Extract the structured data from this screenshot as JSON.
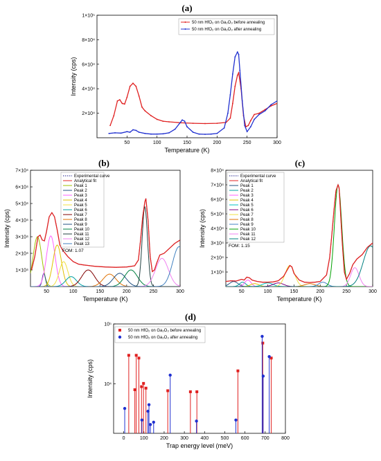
{
  "figure": {
    "panels": [
      {
        "key": "a",
        "label": "(a)"
      },
      {
        "key": "b",
        "label": "(b)"
      },
      {
        "key": "c",
        "label": "(c)"
      },
      {
        "key": "d",
        "label": "(d)"
      }
    ]
  },
  "chart_data": [
    {
      "panel": "(a)",
      "type": "line",
      "xlabel": "Temperature (K)",
      "ylabel": "Intensity (cps)",
      "xlim": [
        0,
        300
      ],
      "ylim": [
        0,
        100000
      ],
      "xticks": [
        50,
        100,
        150,
        200,
        250,
        300
      ],
      "yticks": [
        20000,
        40000,
        60000,
        80000,
        100000
      ],
      "ytick_labels": [
        "2×10⁴",
        "4×10⁴",
        "6×10⁴",
        "8×10⁴",
        "1×10⁵"
      ],
      "legend_position": "top-right",
      "series": [
        {
          "name": "50 nm HfO₂ on Ga₂O₃ before annealing",
          "color": "#e02020",
          "x": [
            22,
            28,
            34,
            38,
            42,
            46,
            50,
            55,
            60,
            65,
            70,
            75,
            80,
            90,
            100,
            110,
            120,
            140,
            160,
            180,
            200,
            215,
            222,
            226,
            230,
            234,
            236,
            240,
            244,
            248,
            252,
            256,
            262,
            270,
            280,
            290,
            300
          ],
          "y": [
            10000,
            18000,
            30000,
            31000,
            28000,
            27500,
            33000,
            42000,
            44500,
            42000,
            34000,
            25000,
            22000,
            18000,
            15000,
            13500,
            13000,
            12200,
            11800,
            11600,
            11800,
            12500,
            16000,
            28000,
            42000,
            51000,
            53000,
            40000,
            18000,
            9000,
            10000,
            14000,
            19000,
            20000,
            23000,
            26000,
            28000
          ]
        },
        {
          "name": "50 nm HfO₂ on Ga₂O₃ after annealing",
          "color": "#2030d0",
          "x": [
            20,
            30,
            40,
            50,
            55,
            60,
            65,
            70,
            80,
            90,
            100,
            110,
            120,
            130,
            138,
            142,
            146,
            150,
            160,
            170,
            180,
            190,
            200,
            212,
            218,
            222,
            226,
            230,
            234,
            236,
            238,
            242,
            246,
            250,
            256,
            262,
            270,
            280,
            290,
            300
          ],
          "y": [
            3500,
            4000,
            3800,
            5000,
            4500,
            6500,
            6000,
            4500,
            3500,
            3000,
            3000,
            3200,
            4000,
            7000,
            12000,
            14500,
            13500,
            9000,
            4500,
            3000,
            2800,
            3000,
            3500,
            8000,
            20000,
            35000,
            52000,
            66000,
            70000,
            68000,
            55000,
            30000,
            10000,
            5000,
            9000,
            15000,
            19000,
            22000,
            27000,
            30000
          ]
        }
      ]
    },
    {
      "panel": "(b)",
      "type": "line",
      "xlabel": "Temperature (K)",
      "ylabel": "Intensity (cps)",
      "xlim": [
        20,
        300
      ],
      "ylim": [
        0,
        70000
      ],
      "xticks": [
        50,
        100,
        150,
        200,
        250,
        300
      ],
      "yticks": [
        10000,
        20000,
        30000,
        40000,
        50000,
        60000,
        70000
      ],
      "ytick_labels": [
        "1×10⁴",
        "2×10⁴",
        "3×10⁴",
        "4×10⁴",
        "5×10⁴",
        "6×10⁴",
        "7×10⁴"
      ],
      "legend_position": "top-left",
      "fom": "FOM: 1.07",
      "series": [
        {
          "name": "Experimental curve",
          "color": "#1a1a8a",
          "style": "dotted",
          "x": [
            22,
            28,
            34,
            38,
            42,
            46,
            50,
            55,
            60,
            65,
            70,
            75,
            80,
            90,
            100,
            110,
            120,
            140,
            160,
            180,
            200,
            215,
            222,
            226,
            230,
            234,
            236,
            240,
            244,
            248,
            252,
            256,
            262,
            270,
            280,
            290,
            300
          ],
          "y": [
            10000,
            18000,
            30000,
            31000,
            28000,
            27500,
            33000,
            42000,
            44500,
            42000,
            34000,
            25000,
            22000,
            18000,
            15000,
            13500,
            13000,
            12200,
            11800,
            11600,
            11800,
            12500,
            16000,
            28000,
            42000,
            51000,
            53000,
            40000,
            18000,
            9000,
            10000,
            14000,
            19000,
            20000,
            23000,
            26000,
            28000
          ]
        },
        {
          "name": "Analytical fit",
          "color": "#e02020",
          "x": [
            22,
            28,
            34,
            38,
            42,
            46,
            50,
            55,
            60,
            65,
            70,
            75,
            80,
            90,
            100,
            110,
            120,
            140,
            160,
            180,
            200,
            215,
            222,
            226,
            230,
            234,
            236,
            240,
            244,
            248,
            252,
            256,
            262,
            270,
            280,
            290,
            300
          ],
          "y": [
            10000,
            18000,
            30000,
            31000,
            28000,
            27500,
            33000,
            42000,
            44500,
            42000,
            34000,
            25000,
            22000,
            18000,
            15000,
            13500,
            13000,
            12200,
            11800,
            11600,
            11800,
            12500,
            16000,
            28000,
            42000,
            51000,
            53000,
            40000,
            18000,
            9000,
            10000,
            14000,
            19000,
            20000,
            23000,
            26000,
            28000
          ]
        }
      ],
      "peaks": [
        {
          "name": "Peak 1",
          "color": "#a0c000",
          "center": 33,
          "height": 30000,
          "width": 8
        },
        {
          "name": "Peak 2",
          "color": "#205080",
          "center": 45,
          "height": 8000,
          "width": 3
        },
        {
          "name": "Peak 3",
          "color": "#ff60ff",
          "center": 58,
          "height": 30500,
          "width": 8
        },
        {
          "name": "Peak 4",
          "color": "#e0c000",
          "center": 70,
          "height": 25000,
          "width": 8
        },
        {
          "name": "Peak 5",
          "color": "#f0e040",
          "center": 82,
          "height": 15000,
          "width": 8
        },
        {
          "name": "Peak 6",
          "color": "#00a0a0",
          "center": 96,
          "height": 6000,
          "width": 10
        },
        {
          "name": "Peak 7",
          "color": "#800000",
          "center": 128,
          "height": 10000,
          "width": 12
        },
        {
          "name": "Peak 8",
          "color": "#e07000",
          "center": 168,
          "height": 7500,
          "width": 12
        },
        {
          "name": "Peak 9",
          "color": "#205080",
          "center": 187,
          "height": 8000,
          "width": 12
        },
        {
          "name": "Peak 10",
          "color": "#008040",
          "center": 208,
          "height": 10000,
          "width": 12
        },
        {
          "name": "Peak 11",
          "color": "#204040",
          "center": 234,
          "height": 48000,
          "width": 5
        },
        {
          "name": "Peak 12",
          "color": "#f080f0",
          "center": 266,
          "height": 17000,
          "width": 12
        },
        {
          "name": "Peak 13",
          "color": "#4080c0",
          "center": 298,
          "height": 24000,
          "width": 12
        }
      ]
    },
    {
      "panel": "(c)",
      "type": "line",
      "xlabel": "Temperature (K)",
      "ylabel": "Intensity (cps)",
      "xlim": [
        20,
        300
      ],
      "ylim": [
        0,
        80000
      ],
      "xticks": [
        50,
        100,
        150,
        200,
        250,
        300
      ],
      "yticks": [
        10000,
        20000,
        30000,
        40000,
        50000,
        60000,
        70000,
        80000
      ],
      "ytick_labels": [
        "1×10⁴",
        "2×10⁴",
        "3×10⁴",
        "4×10⁴",
        "5×10⁴",
        "6×10⁴",
        "7×10⁴",
        "8×10⁴"
      ],
      "legend_position": "top-left",
      "fom": "FOM: 1.15",
      "series": [
        {
          "name": "Experimental curve",
          "color": "#1a1a8a",
          "style": "dotted",
          "x": [
            20,
            30,
            40,
            50,
            55,
            60,
            65,
            70,
            80,
            90,
            100,
            110,
            120,
            130,
            138,
            142,
            146,
            150,
            160,
            170,
            180,
            190,
            200,
            212,
            218,
            222,
            226,
            230,
            234,
            236,
            238,
            242,
            246,
            250,
            256,
            262,
            270,
            280,
            290,
            300
          ],
          "y": [
            3500,
            4000,
            3800,
            5000,
            4500,
            6500,
            6000,
            4500,
            3500,
            3000,
            3000,
            3200,
            4000,
            7000,
            12000,
            14500,
            13500,
            9000,
            4500,
            3000,
            2800,
            3000,
            3500,
            8000,
            20000,
            35000,
            52000,
            66000,
            70000,
            68000,
            55000,
            30000,
            10000,
            5000,
            9000,
            15000,
            19000,
            22000,
            27000,
            30000
          ]
        },
        {
          "name": "Analytical fit",
          "color": "#e02020",
          "x": [
            20,
            30,
            40,
            50,
            55,
            60,
            65,
            70,
            80,
            90,
            100,
            110,
            120,
            130,
            138,
            142,
            146,
            150,
            160,
            170,
            180,
            190,
            200,
            212,
            218,
            222,
            226,
            230,
            234,
            236,
            238,
            242,
            246,
            250,
            256,
            262,
            270,
            280,
            290,
            300
          ],
          "y": [
            3500,
            4000,
            3800,
            5000,
            4500,
            6500,
            6000,
            4500,
            3500,
            3000,
            3000,
            3200,
            4000,
            7000,
            12000,
            14500,
            13500,
            9000,
            4500,
            3000,
            2800,
            3000,
            3500,
            8000,
            20000,
            35000,
            52000,
            66000,
            70000,
            68000,
            55000,
            30000,
            10000,
            5000,
            9000,
            15000,
            19000,
            22000,
            27000,
            30000
          ]
        }
      ],
      "peaks": [
        {
          "name": "Peak 1",
          "color": "#205080",
          "center": 35,
          "height": 3500,
          "width": 8
        },
        {
          "name": "Peak 2",
          "color": "#00a0a0",
          "center": 52,
          "height": 3000,
          "width": 6
        },
        {
          "name": "Peak 3",
          "color": "#ff60ff",
          "center": 62,
          "height": 4500,
          "width": 6
        },
        {
          "name": "Peak 4",
          "color": "#e0c000",
          "center": 75,
          "height": 2000,
          "width": 8
        },
        {
          "name": "Peak 5",
          "color": "#00c0c0",
          "center": 100,
          "height": 2500,
          "width": 10
        },
        {
          "name": "Peak 6",
          "color": "#800080",
          "center": 120,
          "height": 2500,
          "width": 10
        },
        {
          "name": "Peak 7",
          "color": "#f0e040",
          "center": 142,
          "height": 14500,
          "width": 9
        },
        {
          "name": "Peak 8",
          "color": "#e07000",
          "center": 180,
          "height": 2000,
          "width": 10
        },
        {
          "name": "Peak 9",
          "color": "#4080c0",
          "center": 205,
          "height": 3000,
          "width": 8
        },
        {
          "name": "Peak 10",
          "color": "#00a000",
          "center": 234,
          "height": 70000,
          "width": 7
        },
        {
          "name": "Peak 11",
          "color": "#f080f0",
          "center": 266,
          "height": 13000,
          "width": 8
        },
        {
          "name": "Peak 12",
          "color": "#008080",
          "center": 296,
          "height": 28000,
          "width": 14
        }
      ]
    },
    {
      "panel": "(d)",
      "type": "scatter",
      "xlabel": "Trap energy level (meV)",
      "ylabel": "Intensity (cps)",
      "xlim": [
        -50,
        800
      ],
      "ylim_log": [
        1500,
        100000
      ],
      "yscale": "log",
      "xticks": [
        0,
        100,
        200,
        300,
        400,
        500,
        600,
        700,
        800
      ],
      "yticks": [
        10000,
        100000
      ],
      "ytick_labels": [
        "10⁴",
        "10⁵"
      ],
      "legend_position": "top-left",
      "series": [
        {
          "name": "50 nm HfO₂ on Ga₂O₃ before annealing",
          "color": "#e02020",
          "marker": "square",
          "x": [
            25,
            55,
            62,
            75,
            88,
            98,
            110,
            218,
            330,
            362,
            565,
            688,
            730
          ],
          "y": [
            30000,
            8000,
            30000,
            27000,
            9000,
            10200,
            8500,
            7700,
            7400,
            7400,
            16500,
            48000,
            27000
          ]
        },
        {
          "name": "50 nm HfO₂ on Ga₂O₃ after annealing",
          "color": "#2030d0",
          "marker": "circle",
          "x": [
            5,
            90,
            120,
            125,
            132,
            148,
            230,
            360,
            555,
            685,
            690,
            720
          ],
          "y": [
            3900,
            2500,
            3500,
            4500,
            2100,
            2300,
            14000,
            2400,
            2500,
            62000,
            13500,
            28500
          ]
        }
      ]
    }
  ]
}
